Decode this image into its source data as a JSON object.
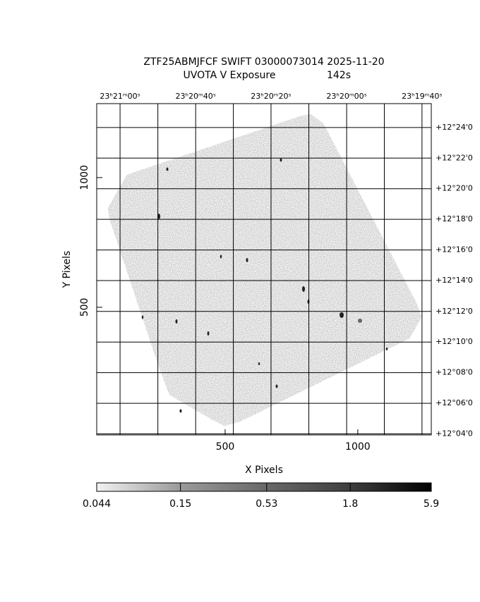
{
  "chart_data": {
    "type": "image",
    "title": "ZTF25ABMJFCF SWIFT 03000073014 2025-11-20",
    "subtitle": "UVOTA V Exposure",
    "exposure": "142s",
    "xlabel": "X Pixels",
    "ylabel": "Y Pixels",
    "xlim": [
      16,
      1277
    ],
    "ylim": [
      8,
      1285
    ],
    "xticks": [
      500,
      1000
    ],
    "yticks": [
      500,
      1000
    ],
    "top_ticks": [
      {
        "value": 104,
        "label": "23ʰ21ᵐ00ˢ"
      },
      {
        "value": 389,
        "label": "23ʰ20ᵐ40ˢ"
      },
      {
        "value": 673,
        "label": "23ʰ20ᵐ20ˢ"
      },
      {
        "value": 958,
        "label": "23ʰ20ᵐ00ˢ"
      },
      {
        "value": 1242,
        "label": "23ʰ19ᵐ40ˢ"
      }
    ],
    "right_ticks": [
      {
        "value": 1193,
        "label": "+12°24'0"
      },
      {
        "value": 1075,
        "label": "+12°22'0"
      },
      {
        "value": 957,
        "label": "+12°20'0"
      },
      {
        "value": 839,
        "label": "+12°18'0"
      },
      {
        "value": 721,
        "label": "+12°16'0"
      },
      {
        "value": 603,
        "label": "+12°14'0"
      },
      {
        "value": 484,
        "label": "+12°12'0"
      },
      {
        "value": 366,
        "label": "+12°10'0"
      },
      {
        "value": 248,
        "label": "+12°08'0"
      },
      {
        "value": 130,
        "label": "+12°06'0"
      },
      {
        "value": 12,
        "label": "+12°04'0"
      }
    ],
    "grid": true,
    "colorbar": {
      "log": true,
      "clim": [
        0.044,
        5.9
      ],
      "ticks": [
        0.044,
        0.15,
        0.53,
        1.8,
        5.9
      ]
    }
  }
}
